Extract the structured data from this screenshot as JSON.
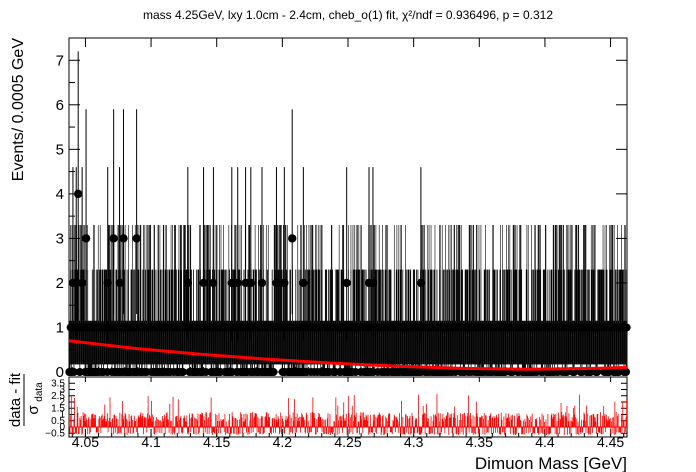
{
  "chart_data": {
    "type": "scatter",
    "title": "mass 4.25GeV, lxy 1.0cm - 2.4cm, cheb_o(1) fit, χ²/ndf = 0.936496, p = 0.312",
    "xlabel": "Dimuon Mass [GeV]",
    "ylabel": "Events/ 0.0005 GeV",
    "xlim": [
      4.0375,
      4.4625
    ],
    "ylim": [
      0,
      7.5
    ],
    "xticks": [
      "4.05",
      "4.1",
      "4.15",
      "4.2",
      "4.25",
      "4.3",
      "4.35",
      "4.4",
      "4.45"
    ],
    "yticks": [
      "0",
      "1",
      "2",
      "3",
      "4",
      "5",
      "6",
      "7"
    ],
    "series": [
      {
        "points": [
          {
            "x": 4.0405,
            "y": 2
          },
          {
            "x": 4.043,
            "y": 2
          },
          {
            "x": 4.0445,
            "y": 4
          },
          {
            "x": 4.0475,
            "y": 2
          },
          {
            "x": 4.0505,
            "y": 3
          },
          {
            "x": 4.067,
            "y": 2
          },
          {
            "x": 4.0715,
            "y": 3
          },
          {
            "x": 4.076,
            "y": 2
          },
          {
            "x": 4.079,
            "y": 3
          },
          {
            "x": 4.089,
            "y": 3
          },
          {
            "x": 4.128,
            "y": 2
          },
          {
            "x": 4.14,
            "y": 2
          },
          {
            "x": 4.1475,
            "y": 2
          },
          {
            "x": 4.1615,
            "y": 2
          },
          {
            "x": 4.166,
            "y": 2
          },
          {
            "x": 4.172,
            "y": 2
          },
          {
            "x": 4.176,
            "y": 2
          },
          {
            "x": 4.1845,
            "y": 2
          },
          {
            "x": 4.1955,
            "y": 2
          },
          {
            "x": 4.2015,
            "y": 2
          },
          {
            "x": 4.2075,
            "y": 3
          },
          {
            "x": 4.216,
            "y": 2
          },
          {
            "x": 4.249,
            "y": 2
          },
          {
            "x": 4.266,
            "y": 2
          },
          {
            "x": 4.269,
            "y": 2
          },
          {
            "x": 4.3055,
            "y": 2
          }
        ],
        "background_level": 1
      },
      {
        "type": "line",
        "color": "#ff0000",
        "x": [
          4.0375,
          4.0875,
          4.1375,
          4.1875,
          4.2375,
          4.2875,
          4.3375,
          4.3875,
          4.4375,
          4.4625
        ],
        "y": [
          0.7,
          0.53,
          0.4,
          0.29,
          0.2,
          0.13,
          0.08,
          0.06,
          0.08,
          0.1
        ]
      }
    ],
    "pull_panel": {
      "ylabel_numerator": "data - fit",
      "ylabel_denominator": "σ",
      "ylabel_subscript": "data",
      "ylim": [
        -0.8,
        4.0
      ],
      "yticks": [
        "3.5",
        "3",
        "2.5",
        "2",
        "1.5",
        "1",
        "0.5",
        "0",
        "−0.5"
      ],
      "bar_color": "#ff0000"
    },
    "grid": false,
    "legend": "none"
  }
}
